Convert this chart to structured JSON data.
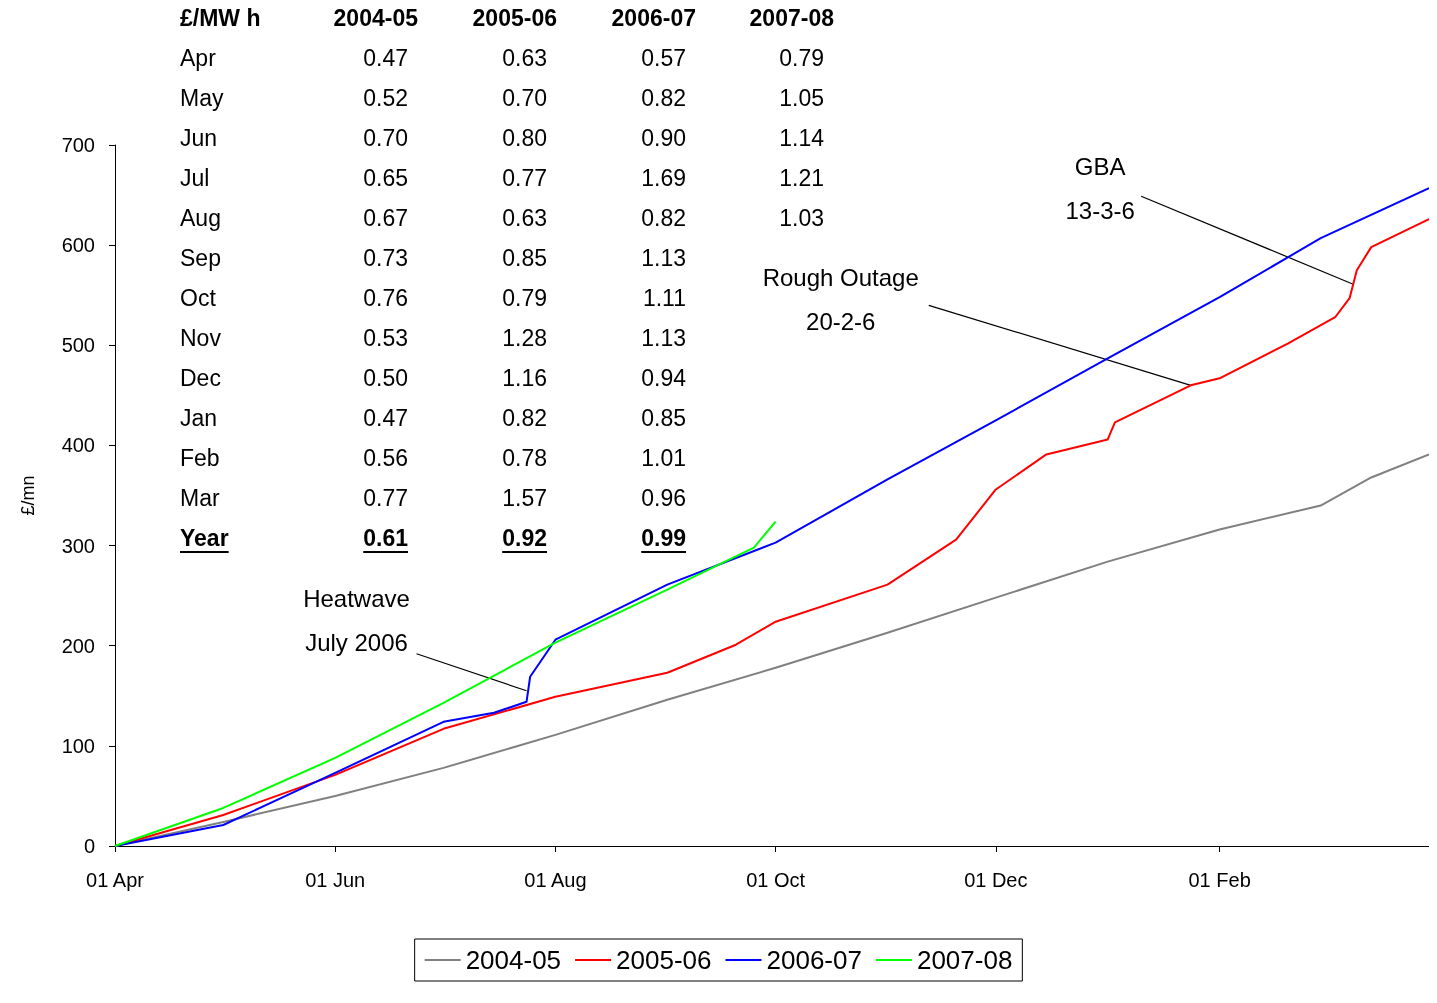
{
  "chart_data": {
    "type": "line",
    "ylabel": "£/mn",
    "xlim": [
      "2005-04-01",
      "2006-03-31"
    ],
    "xticks": [
      {
        "value": "2005-04-01",
        "label": "01 Apr"
      },
      {
        "value": "2005-06-01",
        "label": "01 Jun"
      },
      {
        "value": "2005-08-01",
        "label": "01 Aug"
      },
      {
        "value": "2005-10-01",
        "label": "01 Oct"
      },
      {
        "value": "2005-12-01",
        "label": "01 Dec"
      },
      {
        "value": "2006-02-01",
        "label": "01 Feb"
      }
    ],
    "ylim": [
      0,
      700
    ],
    "yticks": [
      0,
      100,
      200,
      300,
      400,
      500,
      600,
      700
    ],
    "grid": false,
    "legend": "bottom",
    "series": [
      {
        "name": "2004-05",
        "color": "#808080",
        "x": [
          "2005-04-01",
          "2005-05-01",
          "2005-06-01",
          "2005-07-01",
          "2005-08-01",
          "2005-09-01",
          "2005-10-01",
          "2005-11-01",
          "2005-12-01",
          "2006-01-01",
          "2006-02-01",
          "2006-03-01",
          "2006-03-15",
          "2006-03-31"
        ],
        "values": [
          0,
          24,
          50,
          78,
          111,
          146,
          178,
          213,
          248,
          284,
          316,
          340,
          368,
          391
        ]
      },
      {
        "name": "2005-06",
        "color": "#ff0000",
        "x": [
          "2005-04-01",
          "2005-05-01",
          "2005-06-01",
          "2005-07-01",
          "2005-08-01",
          "2005-09-01",
          "2005-09-20",
          "2005-10-01",
          "2005-11-01",
          "2005-11-20",
          "2005-12-01",
          "2005-12-15",
          "2006-01-01",
          "2006-01-03",
          "2006-01-24",
          "2006-02-01",
          "2006-02-20",
          "2006-03-05",
          "2006-03-09",
          "2006-03-11",
          "2006-03-15",
          "2006-03-31"
        ],
        "values": [
          0,
          31,
          71,
          117,
          149,
          173,
          201,
          224,
          261,
          306,
          356,
          391,
          406,
          423,
          460,
          467,
          502,
          528,
          547,
          575,
          598,
          626
        ]
      },
      {
        "name": "2006-07",
        "color": "#0000ff",
        "x": [
          "2005-04-01",
          "2005-05-01",
          "2005-06-01",
          "2005-07-01",
          "2005-07-15",
          "2005-07-24",
          "2005-07-25",
          "2005-08-01",
          "2005-09-01",
          "2005-10-01",
          "2005-11-01",
          "2005-12-01",
          "2006-01-01",
          "2006-02-01",
          "2006-03-01",
          "2006-03-31"
        ],
        "values": [
          0,
          21,
          73,
          124,
          133,
          144,
          169,
          206,
          261,
          303,
          366,
          425,
          487,
          548,
          607,
          657
        ]
      },
      {
        "name": "2007-08",
        "color": "#00ff00",
        "x": [
          "2005-04-01",
          "2005-05-01",
          "2005-06-01",
          "2005-07-01",
          "2005-08-01",
          "2005-09-01",
          "2005-09-25",
          "2005-10-01"
        ],
        "values": [
          0,
          38,
          88,
          143,
          203,
          256,
          298,
          324
        ]
      }
    ],
    "annotations": [
      "£/MW h",
      "Apr",
      "May",
      "Jun",
      "Jul",
      "Aug",
      "Sep",
      "Oct",
      "Nov",
      "Dec",
      "Jan",
      "Feb",
      "Mar",
      "Year",
      "2004-05",
      "0.47",
      "0.52",
      "0.70",
      "0.65",
      "0.67",
      "0.73",
      "0.76",
      "0.53",
      "0.50",
      "0.47",
      "0.56",
      "0.77",
      "0.61",
      "2005-06",
      "0.63",
      "0.70",
      "0.80",
      "0.77",
      "0.63",
      "0.85",
      "0.79",
      "1.28",
      "1.16",
      "0.82",
      "0.78",
      "1.57",
      "0.92",
      "2006-07",
      "0.57",
      "0.82",
      "0.90",
      "1.69",
      "0.82",
      "1.13",
      "1.11",
      "1.13",
      "0.94",
      "0.85",
      "1.01",
      "0.96",
      "0.99",
      "2007-08",
      "0.79",
      "1.05",
      "1.14",
      "1.21",
      "1.03",
      {
        "text": "Heatwave\nJuly 2006",
        "x": "2005-07-24",
        "y": 155
      },
      {
        "text": "Rough Outage\n20-2-6",
        "x": "2006-01-24",
        "y": 460
      },
      {
        "text": "GBA\n13-3-6",
        "x": "2006-03-10",
        "y": 561
      }
    ]
  }
}
